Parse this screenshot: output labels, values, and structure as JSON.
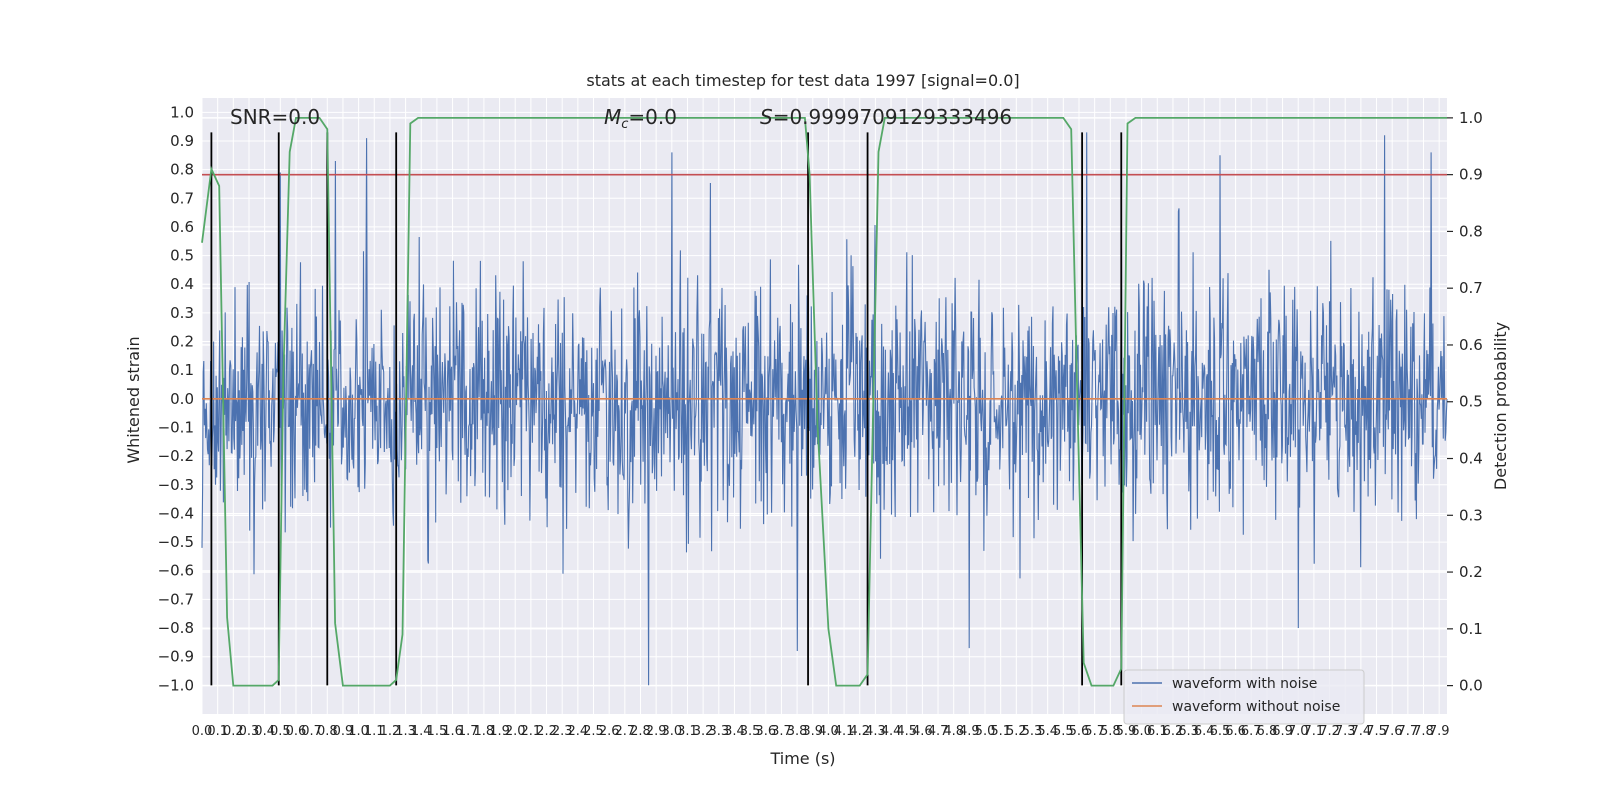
{
  "chart_data": {
    "type": "line",
    "title": "stats at each timestep for test data 1997 [signal=0.0]",
    "xlabel": "Time (s)",
    "ylabel": "Whitened strain",
    "y2label": "Detection probability",
    "xlim": [
      0.0,
      7.95
    ],
    "ylim": [
      -1.1,
      1.05
    ],
    "y2lim": [
      -0.05,
      1.035
    ],
    "x_ticks": [
      0.0,
      0.1,
      0.2,
      0.3,
      0.4,
      0.5,
      0.6,
      0.7,
      0.8,
      0.9,
      1.0,
      1.1,
      1.2,
      1.3,
      1.4,
      1.5,
      1.6,
      1.7,
      1.8,
      1.9,
      2.0,
      2.1,
      2.2,
      2.3,
      2.4,
      2.5,
      2.6,
      2.7,
      2.8,
      2.9,
      3.0,
      3.1,
      3.2,
      3.3,
      3.4,
      3.5,
      3.6,
      3.7,
      3.8,
      3.9,
      4.0,
      4.1,
      4.2,
      4.3,
      4.4,
      4.5,
      4.6,
      4.7,
      4.8,
      4.9,
      5.0,
      5.1,
      5.2,
      5.3,
      5.4,
      5.5,
      5.6,
      5.7,
      5.8,
      5.9,
      6.0,
      6.1,
      6.2,
      6.3,
      6.4,
      6.5,
      6.6,
      6.7,
      6.8,
      6.9,
      7.0,
      7.1,
      7.2,
      7.3,
      7.4,
      7.5,
      7.6,
      7.7,
      7.8,
      7.9
    ],
    "x_tick_labels": [
      "0.0",
      "0.1",
      "0.2",
      "0.3",
      "0.4",
      "0.5",
      "0.6",
      "0.7",
      "0.8",
      "0.9",
      "1.0",
      "1.1",
      "1.2",
      "1.3",
      "1.4",
      "1.5",
      "1.6",
      "1.7",
      "1.8",
      "1.9",
      "2.0",
      "2.1",
      "2.2",
      "2.3",
      "2.4",
      "2.5",
      "2.6",
      "2.7",
      "2.8",
      "2.9",
      "3.0",
      "3.1",
      "3.2",
      "3.3",
      "3.4",
      "3.5",
      "3.6",
      "3.7",
      "3.8",
      "3.9",
      "4.0",
      "4.1",
      "4.2",
      "4.3",
      "4.4",
      "4.5",
      "4.6",
      "4.7",
      "4.8",
      "4.9",
      "5.0",
      "5.1",
      "5.2",
      "5.3",
      "5.4",
      "5.5",
      "5.6",
      "5.7",
      "5.8",
      "5.9",
      "6.0",
      "6.1",
      "6.2",
      "6.3",
      "6.4",
      "6.5",
      "6.6",
      "6.7",
      "6.8",
      "6.9",
      "7.0",
      "7.1",
      "7.2",
      "7.3",
      "7.4",
      "7.5",
      "7.6",
      "7.7",
      "7.8",
      "7.9"
    ],
    "y_ticks": [
      -1.0,
      -0.9,
      -0.8,
      -0.7,
      -0.6,
      -0.5,
      -0.4,
      -0.3,
      -0.2,
      -0.1,
      0.0,
      0.1,
      0.2,
      0.3,
      0.4,
      0.5,
      0.6,
      0.7,
      0.8,
      0.9,
      1.0
    ],
    "y_tick_labels": [
      "−1.0",
      "−0.9",
      "−0.8",
      "−0.7",
      "−0.6",
      "−0.5",
      "−0.4",
      "−0.3",
      "−0.2",
      "−0.1",
      "0.0",
      "0.1",
      "0.2",
      "0.3",
      "0.4",
      "0.5",
      "0.6",
      "0.7",
      "0.8",
      "0.9",
      "1.0"
    ],
    "y2_ticks": [
      0.0,
      0.1,
      0.2,
      0.3,
      0.4,
      0.5,
      0.6,
      0.7,
      0.8,
      0.9,
      1.0
    ],
    "y2_tick_labels": [
      "0.0",
      "0.1",
      "0.2",
      "0.3",
      "0.4",
      "0.5",
      "0.6",
      "0.7",
      "0.8",
      "0.9",
      "1.0"
    ],
    "grid": true,
    "legend_position": "bottom-right",
    "legend": [
      "waveform with noise",
      "waveform without noise"
    ],
    "annotations": {
      "snr_label": "SNR=0.0",
      "mc_symbol": "M",
      "mc_subscript": "c",
      "mc_value": "=0.0",
      "s_symbol": "S",
      "s_value": "=0.9999709129333496"
    },
    "series": [
      {
        "name": "waveform with noise",
        "color": "#4c72b0",
        "axis": "left",
        "description": "dense whitened noise samples, sampled at 256 Hz, amplitude mostly within ±0.4 with peaks up to ~0.92 and down to ~-1.0",
        "typical_amplitude": 0.2,
        "peaks": [
          [
            0.5,
            0.79
          ],
          [
            0.85,
            0.83
          ],
          [
            1.05,
            0.91
          ],
          [
            3.0,
            0.86
          ],
          [
            5.65,
            0.93
          ],
          [
            6.5,
            0.85
          ],
          [
            7.55,
            0.92
          ],
          [
            7.85,
            0.86
          ],
          [
            2.85,
            -1.0
          ],
          [
            3.8,
            -0.88
          ],
          [
            4.9,
            -0.87
          ],
          [
            7.0,
            -0.8
          ]
        ]
      },
      {
        "name": "waveform without noise",
        "color": "#dd8452",
        "axis": "left",
        "x": [
          0.0,
          7.95
        ],
        "y": [
          0.0,
          0.0
        ]
      },
      {
        "name": "detection probability",
        "color": "#55a868",
        "axis": "right",
        "x": [
          0.0,
          0.06,
          0.11,
          0.16,
          0.2,
          0.25,
          0.3,
          0.35,
          0.4,
          0.45,
          0.49,
          0.52,
          0.56,
          0.6,
          0.65,
          0.7,
          0.75,
          0.8,
          0.85,
          0.9,
          0.95,
          1.0,
          1.05,
          1.1,
          1.15,
          1.2,
          1.24,
          1.28,
          1.33,
          1.38,
          1.45,
          3.85,
          3.88,
          3.93,
          4.0,
          4.05,
          4.1,
          4.15,
          4.2,
          4.25,
          4.32,
          4.36,
          4.42,
          4.5,
          5.5,
          5.55,
          5.59,
          5.63,
          5.68,
          5.72,
          5.78,
          5.82,
          5.87,
          5.91,
          5.96,
          6.0,
          7.95
        ],
        "y": [
          0.78,
          0.91,
          0.88,
          0.12,
          0.0,
          0.0,
          0.0,
          0.0,
          0.0,
          0.0,
          0.01,
          0.55,
          0.94,
          1.0,
          1.0,
          1.0,
          1.0,
          0.98,
          0.11,
          0.0,
          0.0,
          0.0,
          0.0,
          0.0,
          0.0,
          0.0,
          0.01,
          0.09,
          0.99,
          1.0,
          1.0,
          1.0,
          0.9,
          0.46,
          0.1,
          0.0,
          0.0,
          0.0,
          0.0,
          0.02,
          0.94,
          1.0,
          1.0,
          1.0,
          1.0,
          0.98,
          0.5,
          0.04,
          0.0,
          0.0,
          0.0,
          0.0,
          0.03,
          0.99,
          1.0,
          1.0,
          1.0
        ]
      },
      {
        "name": "threshold",
        "color": "#c44e52",
        "axis": "right",
        "x": [
          0.0,
          7.95
        ],
        "y": [
          0.9,
          0.9
        ]
      }
    ],
    "vertical_lines": {
      "color": "#000000",
      "x": [
        0.06,
        0.49,
        0.8,
        1.24,
        3.87,
        4.25,
        5.62,
        5.87
      ],
      "y_range": [
        -1.0,
        0.93
      ]
    }
  }
}
